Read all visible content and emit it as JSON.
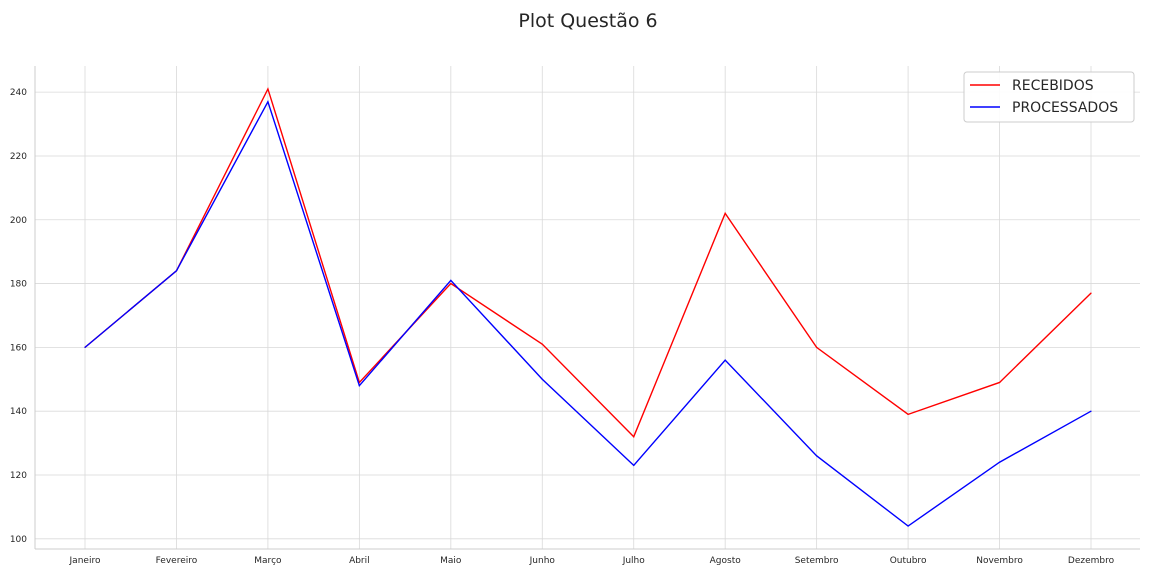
{
  "chart_data": {
    "type": "line",
    "title": "Plot Questão 6",
    "xlabel": "",
    "ylabel": "",
    "categories": [
      "Janeiro",
      "Fevereiro",
      "Março",
      "Abril",
      "Maio",
      "Junho",
      "Julho",
      "Agosto",
      "Setembro",
      "Outubro",
      "Novembro",
      "Dezembro"
    ],
    "series": [
      {
        "name": "RECEBIDOS",
        "color": "#ff0000",
        "values": [
          160,
          184,
          241,
          149,
          180,
          161,
          132,
          202,
          160,
          139,
          149,
          177
        ]
      },
      {
        "name": "PROCESSADOS",
        "color": "#0000ff",
        "values": [
          160,
          184,
          237,
          148,
          181,
          150,
          123,
          156,
          126,
          104,
          124,
          140
        ]
      }
    ],
    "yticks": [
      100,
      120,
      140,
      160,
      180,
      200,
      220,
      240
    ],
    "ylim": [
      96.8,
      248.2
    ],
    "grid": true,
    "legend_position": "top-right"
  }
}
